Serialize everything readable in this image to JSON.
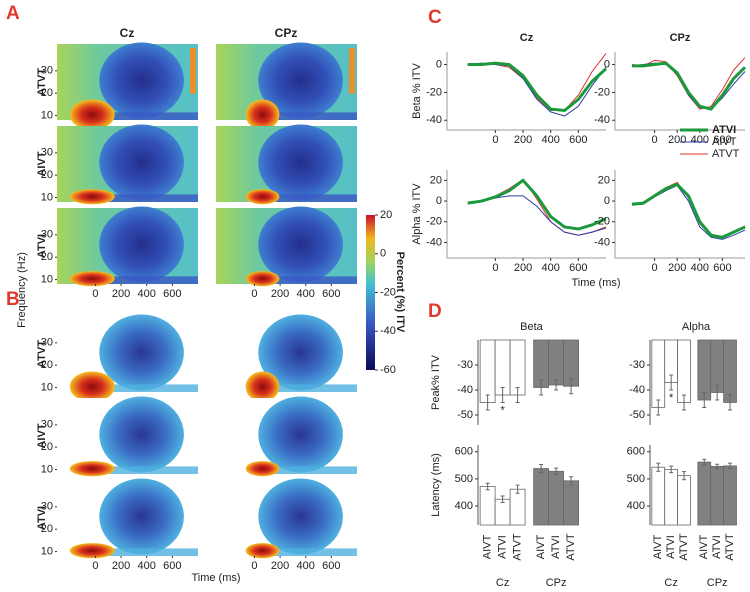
{
  "panel_labels": [
    "A",
    "B",
    "C",
    "D"
  ],
  "heatmaps": {
    "columns": [
      "Cz",
      "CPz"
    ],
    "rows_a": [
      "ATVT",
      "AIVT",
      "ATVI"
    ],
    "rows_b": [
      "ATVT",
      "AIVT",
      "ATVI"
    ],
    "y_label": "Frequency (Hz)",
    "x_label": "Time (ms)",
    "ylim": [
      8,
      42
    ],
    "yticks": [
      10,
      20,
      30
    ],
    "xlim": [
      -300,
      800
    ],
    "xticks": [
      0,
      200,
      400,
      600
    ],
    "colorbar": {
      "label": "Percent (%) ITV",
      "lim": [
        -60,
        20
      ],
      "ticks": [
        20,
        0,
        -20,
        -40,
        -60
      ]
    }
  },
  "time_label": "Time (ms)",
  "chart_data": [
    {
      "type": "line",
      "title": "Cz",
      "y_label": "Beta % ITV",
      "x": [
        -200,
        -100,
        0,
        100,
        200,
        300,
        400,
        500,
        600,
        700,
        800
      ],
      "xlim": [
        -350,
        800
      ],
      "xticks": [
        0,
        200,
        400,
        600
      ],
      "ylim": [
        -47,
        9
      ],
      "yticks": [
        0,
        -20,
        -40
      ],
      "series": [
        {
          "name": "ATVI",
          "color": "#1a9a3a",
          "width": 3,
          "values": [
            0,
            0,
            1,
            0,
            -8,
            -22,
            -32,
            -33,
            -25,
            -12,
            -3
          ]
        },
        {
          "name": "AIVT",
          "color": "#2b3fa8",
          "width": 1,
          "values": [
            0,
            1,
            0,
            -1,
            -10,
            -25,
            -34,
            -37,
            -30,
            -15,
            -2
          ]
        },
        {
          "name": "ATVT",
          "color": "#e03030",
          "width": 1,
          "values": [
            0,
            0,
            0,
            -2,
            -10,
            -24,
            -33,
            -33,
            -22,
            -5,
            8
          ]
        }
      ]
    },
    {
      "type": "line",
      "title": "CPz",
      "x": [
        -200,
        -100,
        0,
        100,
        200,
        300,
        400,
        500,
        600,
        700,
        800
      ],
      "xlim": [
        -350,
        800
      ],
      "xticks": [
        0,
        200,
        400,
        600
      ],
      "ylim": [
        -47,
        9
      ],
      "yticks": [
        0,
        -20,
        -40
      ],
      "series": [
        {
          "name": "ATVI",
          "color": "#1a9a3a",
          "width": 3,
          "values": [
            -1,
            -1,
            0,
            1,
            -6,
            -20,
            -30,
            -32,
            -22,
            -10,
            -2
          ]
        },
        {
          "name": "AIVT",
          "color": "#2b3fa8",
          "width": 1,
          "values": [
            -1,
            0,
            1,
            0,
            -7,
            -22,
            -31,
            -32,
            -24,
            -14,
            -5
          ]
        },
        {
          "name": "ATVT",
          "color": "#e03030",
          "width": 1,
          "values": [
            0,
            -1,
            3,
            2,
            -8,
            -22,
            -32,
            -30,
            -18,
            -4,
            5
          ]
        }
      ]
    },
    {
      "type": "line",
      "y_label": "Alpha % ITV",
      "x": [
        -200,
        -100,
        0,
        100,
        200,
        300,
        400,
        500,
        600,
        700,
        800
      ],
      "xlim": [
        -350,
        800
      ],
      "xticks": [
        0,
        200,
        400,
        600
      ],
      "ylim": [
        -55,
        30
      ],
      "yticks": [
        20,
        0,
        -20,
        -40
      ],
      "series": [
        {
          "name": "ATVI",
          "color": "#1a9a3a",
          "width": 3,
          "values": [
            -2,
            0,
            4,
            10,
            20,
            5,
            -15,
            -25,
            -27,
            -23,
            -17
          ]
        },
        {
          "name": "AIVT",
          "color": "#2b3fa8",
          "width": 1,
          "values": [
            -2,
            0,
            3,
            5,
            5,
            -5,
            -20,
            -30,
            -33,
            -30,
            -26
          ]
        },
        {
          "name": "ATVT",
          "color": "#e03030",
          "width": 1,
          "values": [
            -2,
            0,
            5,
            12,
            21,
            2,
            -20,
            -30,
            -33,
            -30,
            -25
          ]
        }
      ]
    },
    {
      "type": "line",
      "legend": "top",
      "x": [
        -200,
        -100,
        0,
        100,
        200,
        300,
        400,
        500,
        600,
        700,
        800
      ],
      "xlim": [
        -350,
        800
      ],
      "xticks": [
        0,
        200,
        400,
        600
      ],
      "ylim": [
        -55,
        30
      ],
      "yticks": [
        20,
        0,
        -20,
        -40
      ],
      "series": [
        {
          "name": "ATVI",
          "color": "#1a9a3a",
          "width": 3,
          "values": [
            -3,
            -2,
            5,
            12,
            16,
            5,
            -20,
            -33,
            -35,
            -30,
            -25
          ]
        },
        {
          "name": "AIVT",
          "color": "#2b3fa8",
          "width": 1,
          "values": [
            -4,
            -3,
            4,
            10,
            15,
            0,
            -25,
            -35,
            -37,
            -33,
            -28
          ]
        },
        {
          "name": "ATVT",
          "color": "#e03030",
          "width": 1,
          "values": [
            -3,
            -2,
            6,
            13,
            18,
            3,
            -22,
            -34,
            -35,
            -30,
            -24
          ]
        }
      ]
    },
    {
      "type": "bar",
      "title": "Beta",
      "y_label": "Peak% ITV",
      "ylim": [
        -54,
        -20
      ],
      "yticks": [
        -30,
        -40,
        -50
      ],
      "categories": [
        "AIVT",
        "ATVI",
        "ATVT"
      ],
      "groups": [
        {
          "name": "Cz",
          "color": "#ffffff",
          "values": [
            -45,
            -42,
            -42
          ],
          "errors": [
            3,
            3,
            3
          ]
        },
        {
          "name": "CPz",
          "color": "#808080",
          "values": [
            -39,
            -38,
            -38.5
          ],
          "errors": [
            3,
            2,
            3
          ]
        }
      ],
      "annotations": [
        {
          "text": "*",
          "group": 0,
          "category": 1
        }
      ]
    },
    {
      "type": "bar",
      "y_label": "Latency (ms)",
      "ylim": [
        330,
        625
      ],
      "yticks": [
        400,
        500,
        600
      ],
      "categories": [
        "AIVT",
        "ATVI",
        "ATVT"
      ],
      "show_labels": true,
      "groups": [
        {
          "name": "Cz",
          "color": "#ffffff",
          "values": [
            472,
            425,
            462
          ],
          "errors": [
            12,
            12,
            15
          ]
        },
        {
          "name": "CPz",
          "color": "#808080",
          "values": [
            538,
            528,
            493
          ],
          "errors": [
            15,
            12,
            15
          ]
        }
      ]
    },
    {
      "type": "bar",
      "title": "Alpha",
      "ylim": [
        -54,
        -20
      ],
      "yticks": [
        -30,
        -40,
        -50
      ],
      "categories": [
        "AIVT",
        "ATVI",
        "ATVT"
      ],
      "groups": [
        {
          "name": "Cz",
          "color": "#ffffff",
          "values": [
            -47,
            -37,
            -45
          ],
          "errors": [
            3,
            3,
            3
          ]
        },
        {
          "name": "CPz",
          "color": "#808080",
          "values": [
            -44,
            -41,
            -45
          ],
          "errors": [
            3,
            3,
            3
          ]
        }
      ],
      "annotations": [
        {
          "text": "*",
          "group": 0,
          "category": 1
        }
      ]
    },
    {
      "type": "bar",
      "ylim": [
        330,
        625
      ],
      "yticks": [
        400,
        500,
        600
      ],
      "categories": [
        "AIVT",
        "ATVI",
        "ATVT"
      ],
      "show_labels": true,
      "groups": [
        {
          "name": "Cz",
          "color": "#ffffff",
          "values": [
            543,
            535,
            512
          ],
          "errors": [
            15,
            12,
            15
          ]
        },
        {
          "name": "CPz",
          "color": "#808080",
          "values": [
            562,
            546,
            548
          ],
          "errors": [
            10,
            8,
            10
          ]
        }
      ]
    }
  ]
}
